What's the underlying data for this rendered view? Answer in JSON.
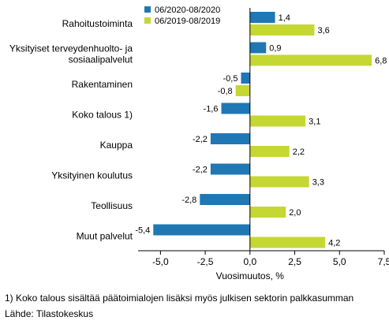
{
  "chart_data": {
    "type": "bar",
    "orientation": "horizontal",
    "categories": [
      "Rahoitustoiminta",
      [
        "Yksityiset terveydenhuolto- ja",
        "sosiaalipalvelut"
      ],
      "Rakentaminen",
      "Koko talous 1)",
      "Kauppa",
      "Yksityinen koulutus",
      "Teollisuus",
      "Muut palvelut"
    ],
    "series": [
      {
        "name": "06/2020-08/2020",
        "color": "#1f77b4",
        "values": [
          1.4,
          0.9,
          -0.5,
          -1.6,
          -2.2,
          -2.2,
          -2.8,
          -5.4
        ],
        "labels": [
          "1,4",
          "0,9",
          "-0,5",
          "-1,6",
          "-2,2",
          "-2,2",
          "-2,8",
          "-5,4"
        ]
      },
      {
        "name": "06/2019-08/2019",
        "color": "#c5d733",
        "values": [
          3.6,
          6.8,
          -0.8,
          3.1,
          2.2,
          3.3,
          2.0,
          4.2
        ],
        "labels": [
          "3,6",
          "6,8",
          "-0,8",
          "3,1",
          "2,2",
          "3,3",
          "2,0",
          "4,2"
        ]
      }
    ],
    "xlabel": "Vuosimuutos, %",
    "xlim": [
      -6.25,
      7.5
    ],
    "ticks": [
      -5.0,
      -2.5,
      0.0,
      2.5,
      5.0,
      7.5
    ],
    "tick_labels": [
      "-5,0",
      "-2,5",
      "0,0",
      "2,5",
      "5,0",
      "7,5"
    ],
    "legend_position": "top-left",
    "grid": false
  },
  "footnote": "1) Koko talous sisältää päätoimialojen lisäksi myös julkisen sektorin palkkasumman",
  "source": "Lähde: Tilastokeskus"
}
